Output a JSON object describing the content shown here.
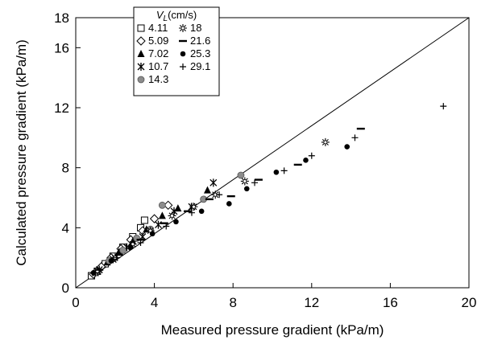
{
  "chart_data": {
    "type": "scatter",
    "xlabel": "Measured pressure gradient (kPa/m)",
    "ylabel": "Calculated pressure gradient (kPa/m)",
    "xlim": [
      0,
      20
    ],
    "ylim": [
      0,
      18
    ],
    "xticks": [
      "0",
      "4",
      "8",
      "12",
      "16",
      "20"
    ],
    "yticks": [
      "0",
      "4",
      "8",
      "12",
      "16",
      "18"
    ],
    "grid": false,
    "legend": {
      "placement": "top-left",
      "title_main": "V",
      "title_sub": "L",
      "title_unit": "(cm/s)"
    },
    "reference_line": {
      "x": [
        0,
        20
      ],
      "y": [
        0,
        18
      ]
    },
    "series": [
      {
        "name": "4.11",
        "marker": "square-open",
        "points": [
          [
            0.8,
            0.8
          ],
          [
            1.1,
            1.1
          ],
          [
            1.5,
            1.6
          ],
          [
            1.9,
            2.1
          ],
          [
            2.4,
            2.7
          ],
          [
            2.9,
            3.4
          ],
          [
            3.3,
            4.0
          ],
          [
            3.5,
            4.5
          ]
        ]
      },
      {
        "name": "5.09",
        "marker": "diamond-open",
        "points": [
          [
            0.9,
            0.9
          ],
          [
            1.3,
            1.4
          ],
          [
            1.8,
            2.0
          ],
          [
            2.3,
            2.6
          ],
          [
            2.8,
            3.2
          ],
          [
            3.4,
            3.8
          ],
          [
            4.0,
            4.6
          ],
          [
            4.7,
            5.5
          ]
        ]
      },
      {
        "name": "7.02",
        "marker": "triangle-filled",
        "points": [
          [
            1.0,
            1.0
          ],
          [
            1.6,
            1.7
          ],
          [
            2.2,
            2.4
          ],
          [
            2.9,
            3.1
          ],
          [
            3.6,
            3.9
          ],
          [
            4.4,
            4.8
          ],
          [
            5.2,
            5.3
          ],
          [
            6.7,
            6.5
          ]
        ]
      },
      {
        "name": "10.7",
        "marker": "asterisk",
        "points": [
          [
            1.2,
            1.2
          ],
          [
            1.9,
            1.9
          ],
          [
            2.6,
            2.7
          ],
          [
            3.4,
            3.4
          ],
          [
            4.2,
            4.2
          ],
          [
            5.0,
            5.1
          ],
          [
            5.9,
            5.4
          ],
          [
            7.0,
            7.0
          ]
        ]
      },
      {
        "name": "14.3",
        "marker": "circle-gray",
        "points": [
          [
            1.0,
            1.0
          ],
          [
            1.7,
            1.8
          ],
          [
            2.4,
            2.5
          ],
          [
            3.1,
            3.3
          ],
          [
            3.8,
            3.9
          ],
          [
            4.4,
            5.5
          ],
          [
            6.5,
            5.9
          ],
          [
            8.4,
            7.5
          ]
        ]
      },
      {
        "name": "18",
        "marker": "star-burst",
        "points": [
          [
            1.1,
            1.1
          ],
          [
            2.0,
            2.0
          ],
          [
            2.9,
            2.9
          ],
          [
            3.8,
            3.8
          ],
          [
            4.9,
            4.8
          ],
          [
            6.0,
            5.4
          ],
          [
            7.1,
            6.2
          ],
          [
            8.6,
            7.1
          ],
          [
            12.7,
            9.7
          ]
        ]
      },
      {
        "name": "21.6",
        "marker": "dash",
        "points": [
          [
            1.2,
            1.2
          ],
          [
            2.2,
            2.2
          ],
          [
            3.3,
            3.2
          ],
          [
            4.5,
            4.3
          ],
          [
            5.7,
            5.1
          ],
          [
            6.8,
            5.9
          ],
          [
            7.9,
            6.1
          ],
          [
            9.3,
            7.2
          ],
          [
            11.3,
            8.2
          ],
          [
            14.5,
            10.6
          ]
        ]
      },
      {
        "name": "25.3",
        "marker": "circle-filled",
        "points": [
          [
            0.9,
            1.0
          ],
          [
            1.8,
            1.8
          ],
          [
            2.8,
            2.7
          ],
          [
            3.9,
            3.6
          ],
          [
            5.1,
            4.4
          ],
          [
            6.4,
            5.1
          ],
          [
            7.8,
            5.6
          ],
          [
            8.7,
            6.6
          ],
          [
            10.2,
            7.7
          ],
          [
            11.7,
            8.5
          ],
          [
            13.8,
            9.4
          ]
        ]
      },
      {
        "name": "29.1",
        "marker": "plus",
        "points": [
          [
            1.0,
            1.0
          ],
          [
            2.1,
            2.0
          ],
          [
            3.3,
            3.0
          ],
          [
            4.6,
            4.1
          ],
          [
            5.9,
            5.0
          ],
          [
            7.3,
            6.2
          ],
          [
            9.1,
            7.0
          ],
          [
            10.6,
            7.8
          ],
          [
            12.0,
            8.8
          ],
          [
            14.2,
            10.0
          ],
          [
            18.7,
            12.1
          ]
        ]
      }
    ]
  }
}
